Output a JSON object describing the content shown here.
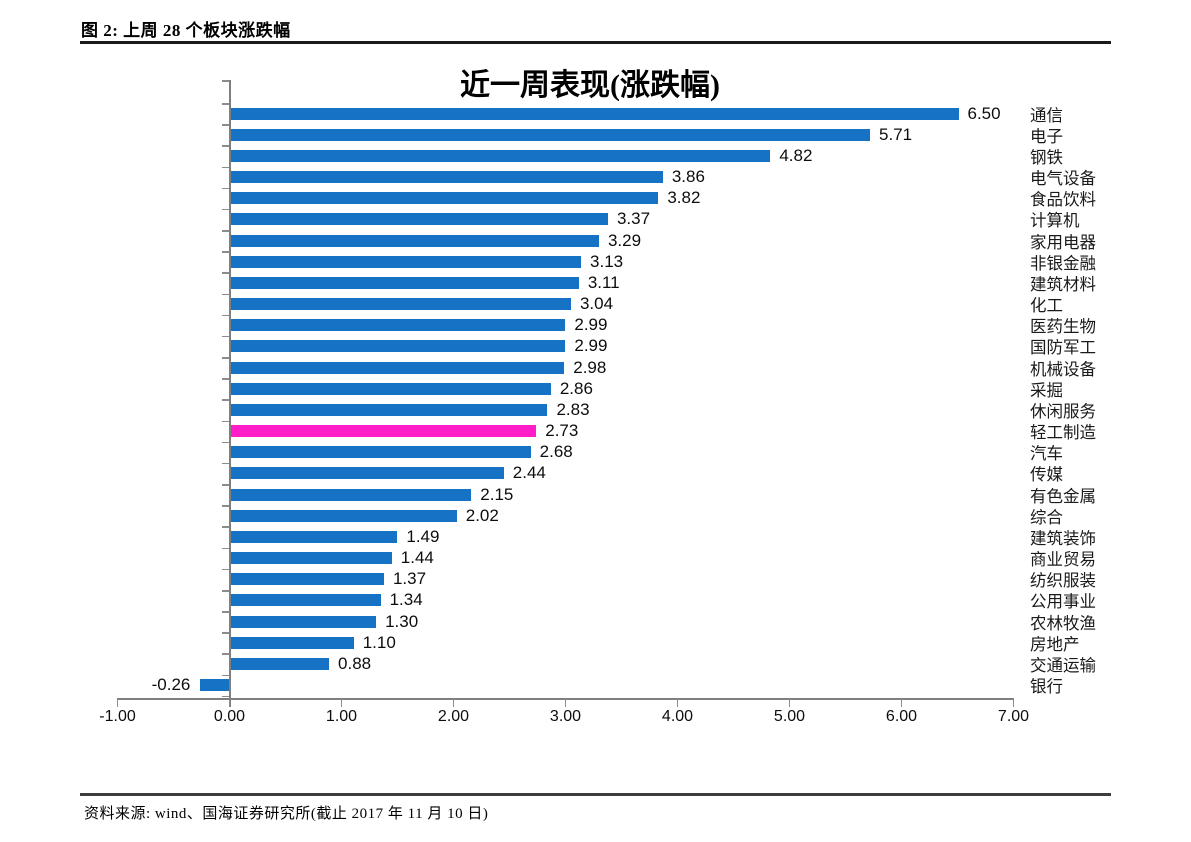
{
  "figure": {
    "caption": "图 2:  上周 28 个板块涨跌幅",
    "source": "资料来源:  wind、国海证券研究所(截止 2017 年 11 月 10 日)"
  },
  "chart_data": {
    "type": "bar",
    "orientation": "horizontal",
    "title": "近一周表现(涨跌幅)",
    "categories": [
      "通信",
      "电子",
      "钢铁",
      "电气设备",
      "食品饮料",
      "计算机",
      "家用电器",
      "非银金融",
      "建筑材料",
      "化工",
      "医药生物",
      "国防军工",
      "机械设备",
      "采掘",
      "休闲服务",
      "轻工制造",
      "汽车",
      "传媒",
      "有色金属",
      "综合",
      "建筑装饰",
      "商业贸易",
      "纺织服装",
      "公用事业",
      "农林牧渔",
      "房地产",
      "交通运输",
      "银行"
    ],
    "values": [
      6.5,
      5.71,
      4.82,
      3.86,
      3.82,
      3.37,
      3.29,
      3.13,
      3.11,
      3.04,
      2.99,
      2.99,
      2.98,
      2.86,
      2.83,
      2.73,
      2.68,
      2.44,
      2.15,
      2.02,
      1.49,
      1.44,
      1.37,
      1.34,
      1.3,
      1.1,
      0.88,
      -0.26
    ],
    "value_labels": [
      "6.50",
      "5.71",
      "4.82",
      "3.86",
      "3.82",
      "3.37",
      "3.29",
      "3.13",
      "3.11",
      "3.04",
      "2.99",
      "2.99",
      "2.98",
      "2.86",
      "2.83",
      "2.73",
      "2.68",
      "2.44",
      "2.15",
      "2.02",
      "1.49",
      "1.44",
      "1.37",
      "1.34",
      "1.30",
      "1.10",
      "0.88",
      "-0.26"
    ],
    "highlight_index": 15,
    "highlight_category": "轻工制造",
    "bar_color": "#1572C4",
    "highlight_color": "#FF1EC8",
    "xlabel": "",
    "ylabel": "",
    "xlim": [
      -1,
      7
    ],
    "x_ticks": [
      "-1.00",
      "0.00",
      "1.00",
      "2.00",
      "3.00",
      "4.00",
      "5.00",
      "6.00",
      "7.00"
    ],
    "grid": "off",
    "legend": "none"
  }
}
